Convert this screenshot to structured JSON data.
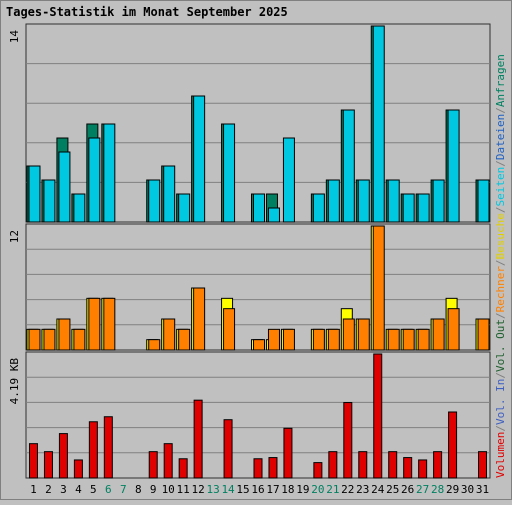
{
  "chart_data": [
    {
      "type": "bar",
      "title": "Tages-Statistik im Monat September 2025",
      "categories": [
        "1",
        "2",
        "3",
        "4",
        "5",
        "6",
        "7",
        "8",
        "9",
        "10",
        "11",
        "12",
        "13",
        "14",
        "15",
        "16",
        "17",
        "18",
        "19",
        "20",
        "21",
        "22",
        "23",
        "24",
        "25",
        "26",
        "27",
        "28",
        "29",
        "30",
        "31"
      ],
      "weekend_categories": [
        "6",
        "7",
        "13",
        "14",
        "20",
        "21",
        "27",
        "28"
      ],
      "ylabel_max": "14",
      "ylim": [
        0,
        14
      ],
      "grid": true,
      "series": [
        {
          "name": "Anfragen",
          "color": "#008060",
          "values": [
            4,
            3,
            6,
            2,
            7,
            7,
            0,
            0,
            3,
            4,
            2,
            9,
            0,
            7,
            0,
            2,
            2,
            0,
            0,
            2,
            3,
            8,
            3,
            14,
            3,
            2,
            2,
            3,
            8,
            0,
            3
          ]
        },
        {
          "name": "Seiten",
          "color": "#00c8e0",
          "values": [
            4,
            3,
            5,
            2,
            6,
            7,
            0,
            0,
            3,
            4,
            2,
            9,
            0,
            7,
            0,
            2,
            1,
            6,
            0,
            2,
            3,
            8,
            3,
            14,
            3,
            2,
            2,
            3,
            8,
            0,
            3
          ]
        }
      ]
    },
    {
      "type": "bar",
      "categories": [
        "1",
        "2",
        "3",
        "4",
        "5",
        "6",
        "7",
        "8",
        "9",
        "10",
        "11",
        "12",
        "13",
        "14",
        "15",
        "16",
        "17",
        "18",
        "19",
        "20",
        "21",
        "22",
        "23",
        "24",
        "25",
        "26",
        "27",
        "28",
        "29",
        "30",
        "31"
      ],
      "ylabel_max": "12",
      "ylim": [
        0,
        12
      ],
      "grid": true,
      "series": [
        {
          "name": "Besuche",
          "color": "#ffff00",
          "values": [
            2,
            2,
            3,
            2,
            5,
            5,
            0,
            0,
            1,
            3,
            2,
            6,
            0,
            5,
            0,
            1,
            1,
            2,
            0,
            2,
            2,
            4,
            3,
            12,
            2,
            2,
            2,
            3,
            5,
            0,
            3
          ]
        },
        {
          "name": "Rechner",
          "color": "#ff8000",
          "values": [
            2,
            2,
            3,
            2,
            5,
            5,
            0,
            0,
            1,
            3,
            2,
            6,
            0,
            4,
            0,
            1,
            2,
            2,
            0,
            2,
            2,
            3,
            3,
            12,
            2,
            2,
            2,
            3,
            4,
            0,
            3
          ]
        }
      ]
    },
    {
      "type": "bar",
      "categories": [
        "1",
        "2",
        "3",
        "4",
        "5",
        "6",
        "7",
        "8",
        "9",
        "10",
        "11",
        "12",
        "13",
        "14",
        "15",
        "16",
        "17",
        "18",
        "19",
        "20",
        "21",
        "22",
        "23",
        "24",
        "25",
        "26",
        "27",
        "28",
        "29",
        "30",
        "31"
      ],
      "ylabel_max": "4.19 KB",
      "ylim": [
        0,
        4.19
      ],
      "grid": true,
      "series": [
        {
          "name": "Volumen",
          "color": "#e00000",
          "values": [
            1.16,
            0.89,
            1.5,
            0.61,
            1.9,
            2.07,
            0,
            0,
            0.89,
            1.16,
            0.65,
            2.63,
            0,
            1.97,
            0,
            0.65,
            0.69,
            1.68,
            0,
            0.52,
            0.89,
            2.55,
            0.89,
            4.19,
            0.89,
            0.69,
            0.61,
            0.89,
            2.23,
            0,
            0.89
          ]
        }
      ]
    }
  ],
  "right_legend": [
    {
      "text": "Volumen",
      "color": "#e00000"
    },
    {
      "text": "/",
      "color": "#808080"
    },
    {
      "text": "Vol. In",
      "color": "#4060c0"
    },
    {
      "text": "/",
      "color": "#808080"
    },
    {
      "text": "Vol. Out",
      "color": "#206030"
    },
    {
      "text": "/",
      "color": "#808080"
    },
    {
      "text": "Rechner",
      "color": "#ff8000"
    },
    {
      "text": "/",
      "color": "#808080"
    },
    {
      "text": "Besuche",
      "color": "#e0d000"
    },
    {
      "text": "/",
      "color": "#808080"
    },
    {
      "text": "Seiten",
      "color": "#00c8e0"
    },
    {
      "text": "/",
      "color": "#808080"
    },
    {
      "text": "Dateien",
      "color": "#2060c0"
    },
    {
      "text": "/",
      "color": "#808080"
    },
    {
      "text": "Anfragen",
      "color": "#008060"
    }
  ],
  "colors": {
    "background": "#c0c0c0",
    "title": "#0000ff",
    "weekday_label": "#000000",
    "weekend_label": "#008060",
    "gridline": "#808080"
  }
}
